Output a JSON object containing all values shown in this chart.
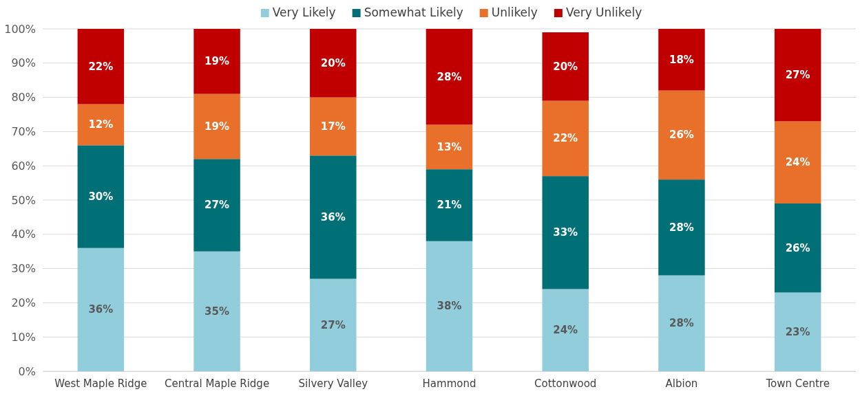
{
  "chart_data": {
    "type": "bar",
    "stacked": true,
    "categories": [
      "West Maple Ridge",
      "Central Maple Ridge",
      "Silvery Valley",
      "Hammond",
      "Cottonwood",
      "Albion",
      "Town Centre"
    ],
    "series": [
      {
        "name": "Very Likely",
        "color": "#92cddc",
        "values": [
          36,
          35,
          27,
          38,
          24,
          28,
          23
        ],
        "value_labels": [
          "36%",
          "35%",
          "27%",
          "38%",
          "24%",
          "28%",
          "23%"
        ]
      },
      {
        "name": "Somewhat Likely",
        "color": "#006f76",
        "values": [
          30,
          27,
          36,
          21,
          33,
          28,
          26
        ],
        "value_labels": [
          "30%",
          "27%",
          "36%",
          "21%",
          "33%",
          "28%",
          "26%"
        ]
      },
      {
        "name": "Unlikely",
        "color": "#e8702a",
        "values": [
          12,
          19,
          17,
          13,
          22,
          26,
          24
        ],
        "value_labels": [
          "12%",
          "19%",
          "17%",
          "13%",
          "22%",
          "26%",
          "24%"
        ]
      },
      {
        "name": "Very Unlikely",
        "color": "#c00000",
        "values": [
          22,
          19,
          20,
          28,
          20,
          18,
          27
        ],
        "value_labels": [
          "22%",
          "19%",
          "20%",
          "28%",
          "20%",
          "18%",
          "27%"
        ]
      }
    ],
    "ylim": [
      0,
      100
    ],
    "yticks": [
      {
        "value": 0,
        "label": "0%"
      },
      {
        "value": 10,
        "label": "10%"
      },
      {
        "value": 20,
        "label": "20%"
      },
      {
        "value": 30,
        "label": "30%"
      },
      {
        "value": 40,
        "label": "40%"
      },
      {
        "value": 50,
        "label": "50%"
      },
      {
        "value": 60,
        "label": "60%"
      },
      {
        "value": 70,
        "label": "70%"
      },
      {
        "value": 80,
        "label": "80%"
      },
      {
        "value": 90,
        "label": "90%"
      },
      {
        "value": 100,
        "label": "100%"
      }
    ],
    "grid": "y",
    "legend": "top"
  }
}
